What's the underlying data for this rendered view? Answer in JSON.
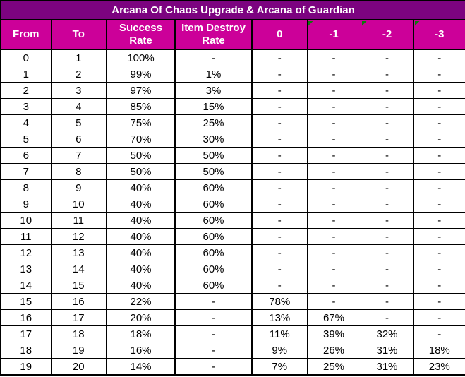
{
  "title": "Arcana Of Chaos Upgrade & Arcana of Guardian",
  "colors": {
    "title_bg": "#7C0380",
    "header_bg": "#CC0099",
    "header_text": "#FFFFFF",
    "grid_line": "#000000",
    "cell_bg": "#FFFFFF",
    "cell_text": "#000000",
    "error_indicator": "#0B7A0B"
  },
  "table": {
    "columns": [
      {
        "label": "From",
        "indicator": false
      },
      {
        "label": "To",
        "indicator": false
      },
      {
        "label": "Success Rate",
        "indicator": false
      },
      {
        "label": "Item Destroy Rate",
        "indicator": false
      },
      {
        "label": "0",
        "indicator": false
      },
      {
        "label": "-1",
        "indicator": true
      },
      {
        "label": "-2",
        "indicator": true
      },
      {
        "label": "-3",
        "indicator": true
      }
    ],
    "rows": [
      [
        "0",
        "1",
        "100%",
        "-",
        "-",
        "-",
        "-",
        "-"
      ],
      [
        "1",
        "2",
        "99%",
        "1%",
        "-",
        "-",
        "-",
        "-"
      ],
      [
        "2",
        "3",
        "97%",
        "3%",
        "-",
        "-",
        "-",
        "-"
      ],
      [
        "3",
        "4",
        "85%",
        "15%",
        "-",
        "-",
        "-",
        "-"
      ],
      [
        "4",
        "5",
        "75%",
        "25%",
        "-",
        "-",
        "-",
        "-"
      ],
      [
        "5",
        "6",
        "70%",
        "30%",
        "-",
        "-",
        "-",
        "-"
      ],
      [
        "6",
        "7",
        "50%",
        "50%",
        "-",
        "-",
        "-",
        "-"
      ],
      [
        "7",
        "8",
        "50%",
        "50%",
        "-",
        "-",
        "-",
        "-"
      ],
      [
        "8",
        "9",
        "40%",
        "60%",
        "-",
        "-",
        "-",
        "-"
      ],
      [
        "9",
        "10",
        "40%",
        "60%",
        "-",
        "-",
        "-",
        "-"
      ],
      [
        "10",
        "11",
        "40%",
        "60%",
        "-",
        "-",
        "-",
        "-"
      ],
      [
        "11",
        "12",
        "40%",
        "60%",
        "-",
        "-",
        "-",
        "-"
      ],
      [
        "12",
        "13",
        "40%",
        "60%",
        "-",
        "-",
        "-",
        "-"
      ],
      [
        "13",
        "14",
        "40%",
        "60%",
        "-",
        "-",
        "-",
        "-"
      ],
      [
        "14",
        "15",
        "40%",
        "60%",
        "-",
        "-",
        "-",
        "-"
      ],
      [
        "15",
        "16",
        "22%",
        "-",
        "78%",
        "-",
        "-",
        "-"
      ],
      [
        "16",
        "17",
        "20%",
        "-",
        "13%",
        "67%",
        "-",
        "-"
      ],
      [
        "17",
        "18",
        "18%",
        "-",
        "11%",
        "39%",
        "32%",
        "-"
      ],
      [
        "18",
        "19",
        "16%",
        "-",
        "9%",
        "26%",
        "31%",
        "18%"
      ],
      [
        "19",
        "20",
        "14%",
        "-",
        "7%",
        "25%",
        "31%",
        "23%"
      ]
    ]
  }
}
